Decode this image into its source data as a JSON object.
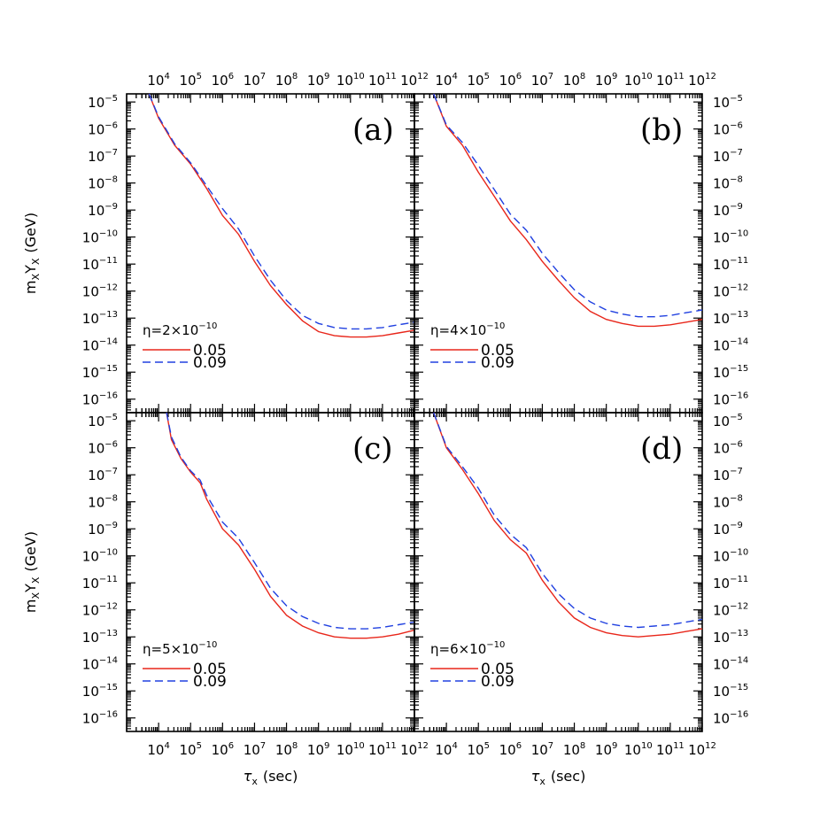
{
  "chart_data": {
    "type": "line",
    "xlabel_symbol": "τ",
    "xlabel_sub": "x",
    "xlabel_unit": "(sec)",
    "ylabel_main": "m",
    "ylabel_sub1": "X",
    "ylabel_mid": "Y",
    "ylabel_sub2": "X",
    "ylabel_unit": "(GeV)",
    "x_scale": "log",
    "y_scale": "log",
    "x_tick_exponents": [
      4,
      5,
      6,
      7,
      8,
      9,
      10,
      11,
      12
    ],
    "y_tick_exponents": [
      -5,
      -6,
      -7,
      -8,
      -9,
      -10,
      -11,
      -12,
      -13,
      -14,
      -15,
      -16
    ],
    "xlim_exp": [
      3.0,
      12.0
    ],
    "ylim_exp": [
      -16.5,
      -4.7
    ],
    "legend": {
      "series": [
        "0.05",
        "0.09"
      ]
    },
    "panels": [
      {
        "tag": "(a)",
        "eta_label": "η=2×10",
        "eta_exp": "−10",
        "series": [
          {
            "name": "0.05",
            "color": "#e8261a",
            "dash": "solid",
            "points": [
              [
                3.7,
                -4.7
              ],
              [
                4.0,
                -5.6
              ],
              [
                4.5,
                -6.6
              ],
              [
                5.0,
                -7.3
              ],
              [
                5.5,
                -8.2
              ],
              [
                6.0,
                -9.2
              ],
              [
                6.5,
                -9.9
              ],
              [
                7.0,
                -10.9
              ],
              [
                7.5,
                -11.8
              ],
              [
                8.0,
                -12.5
              ],
              [
                8.5,
                -13.1
              ],
              [
                9.0,
                -13.5
              ],
              [
                9.5,
                -13.65
              ],
              [
                10.0,
                -13.7
              ],
              [
                10.5,
                -13.7
              ],
              [
                11.0,
                -13.65
              ],
              [
                11.5,
                -13.55
              ],
              [
                12.0,
                -13.45
              ]
            ]
          },
          {
            "name": "0.09",
            "color": "#2040e0",
            "dash": "dashed",
            "points": [
              [
                3.7,
                -4.7
              ],
              [
                4.0,
                -5.55
              ],
              [
                4.5,
                -6.55
              ],
              [
                5.0,
                -7.25
              ],
              [
                5.5,
                -8.1
              ],
              [
                6.0,
                -8.95
              ],
              [
                6.5,
                -9.7
              ],
              [
                7.0,
                -10.7
              ],
              [
                7.5,
                -11.6
              ],
              [
                8.0,
                -12.35
              ],
              [
                8.5,
                -12.9
              ],
              [
                9.0,
                -13.2
              ],
              [
                9.5,
                -13.35
              ],
              [
                10.0,
                -13.4
              ],
              [
                10.5,
                -13.4
              ],
              [
                11.0,
                -13.35
              ],
              [
                11.5,
                -13.25
              ],
              [
                12.0,
                -13.15
              ]
            ]
          }
        ]
      },
      {
        "tag": "(b)",
        "eta_label": "η=4×10",
        "eta_exp": "−10",
        "series": [
          {
            "name": "0.05",
            "color": "#e8261a",
            "dash": "solid",
            "points": [
              [
                3.6,
                -4.7
              ],
              [
                4.0,
                -5.9
              ],
              [
                4.5,
                -6.6
              ],
              [
                5.0,
                -7.6
              ],
              [
                5.5,
                -8.5
              ],
              [
                6.0,
                -9.4
              ],
              [
                6.5,
                -10.1
              ],
              [
                7.0,
                -10.9
              ],
              [
                7.5,
                -11.6
              ],
              [
                8.0,
                -12.25
              ],
              [
                8.5,
                -12.75
              ],
              [
                9.0,
                -13.05
              ],
              [
                9.5,
                -13.2
              ],
              [
                10.0,
                -13.3
              ],
              [
                10.5,
                -13.3
              ],
              [
                11.0,
                -13.25
              ],
              [
                11.5,
                -13.15
              ],
              [
                12.0,
                -13.05
              ]
            ]
          },
          {
            "name": "0.09",
            "color": "#2040e0",
            "dash": "dashed",
            "points": [
              [
                3.6,
                -4.7
              ],
              [
                4.0,
                -5.85
              ],
              [
                4.5,
                -6.5
              ],
              [
                5.0,
                -7.35
              ],
              [
                5.5,
                -8.25
              ],
              [
                6.0,
                -9.15
              ],
              [
                6.5,
                -9.75
              ],
              [
                7.0,
                -10.6
              ],
              [
                7.5,
                -11.3
              ],
              [
                8.0,
                -11.95
              ],
              [
                8.5,
                -12.4
              ],
              [
                9.0,
                -12.7
              ],
              [
                9.5,
                -12.85
              ],
              [
                10.0,
                -12.95
              ],
              [
                10.5,
                -12.95
              ],
              [
                11.0,
                -12.9
              ],
              [
                11.5,
                -12.8
              ],
              [
                12.0,
                -12.7
              ]
            ]
          }
        ]
      },
      {
        "tag": "(c)",
        "eta_label": "η=5×10",
        "eta_exp": "−10",
        "series": [
          {
            "name": "0.05",
            "color": "#e8261a",
            "dash": "solid",
            "points": [
              [
                4.25,
                -4.7
              ],
              [
                4.4,
                -5.7
              ],
              [
                4.7,
                -6.4
              ],
              [
                5.0,
                -6.9
              ],
              [
                5.3,
                -7.3
              ],
              [
                5.5,
                -7.9
              ],
              [
                6.0,
                -9.0
              ],
              [
                6.5,
                -9.6
              ],
              [
                7.0,
                -10.5
              ],
              [
                7.5,
                -11.5
              ],
              [
                8.0,
                -12.2
              ],
              [
                8.5,
                -12.6
              ],
              [
                9.0,
                -12.85
              ],
              [
                9.5,
                -13.0
              ],
              [
                10.0,
                -13.05
              ],
              [
                10.5,
                -13.05
              ],
              [
                11.0,
                -13.0
              ],
              [
                11.5,
                -12.9
              ],
              [
                12.0,
                -12.75
              ]
            ]
          },
          {
            "name": "0.09",
            "color": "#2040e0",
            "dash": "dashed",
            "points": [
              [
                4.25,
                -4.7
              ],
              [
                4.4,
                -5.6
              ],
              [
                4.7,
                -6.35
              ],
              [
                5.0,
                -6.85
              ],
              [
                5.3,
                -7.2
              ],
              [
                5.5,
                -7.75
              ],
              [
                6.0,
                -8.75
              ],
              [
                6.5,
                -9.35
              ],
              [
                7.0,
                -10.25
              ],
              [
                7.5,
                -11.2
              ],
              [
                8.0,
                -11.85
              ],
              [
                8.5,
                -12.25
              ],
              [
                9.0,
                -12.5
              ],
              [
                9.5,
                -12.65
              ],
              [
                10.0,
                -12.7
              ],
              [
                10.5,
                -12.7
              ],
              [
                11.0,
                -12.65
              ],
              [
                11.5,
                -12.55
              ],
              [
                12.0,
                -12.45
              ]
            ]
          }
        ]
      },
      {
        "tag": "(d)",
        "eta_label": "η=6×10",
        "eta_exp": "−10",
        "series": [
          {
            "name": "0.05",
            "color": "#e8261a",
            "dash": "solid",
            "points": [
              [
                3.6,
                -4.7
              ],
              [
                4.0,
                -6.0
              ],
              [
                4.5,
                -6.8
              ],
              [
                5.0,
                -7.7
              ],
              [
                5.5,
                -8.7
              ],
              [
                6.0,
                -9.4
              ],
              [
                6.5,
                -9.9
              ],
              [
                7.0,
                -10.9
              ],
              [
                7.5,
                -11.7
              ],
              [
                8.0,
                -12.3
              ],
              [
                8.5,
                -12.65
              ],
              [
                9.0,
                -12.85
              ],
              [
                9.5,
                -12.95
              ],
              [
                10.0,
                -13.0
              ],
              [
                10.5,
                -12.95
              ],
              [
                11.0,
                -12.9
              ],
              [
                11.5,
                -12.8
              ],
              [
                12.0,
                -12.7
              ]
            ]
          },
          {
            "name": "0.09",
            "color": "#2040e0",
            "dash": "dashed",
            "points": [
              [
                3.6,
                -4.7
              ],
              [
                4.0,
                -5.95
              ],
              [
                4.5,
                -6.7
              ],
              [
                5.0,
                -7.5
              ],
              [
                5.5,
                -8.5
              ],
              [
                6.0,
                -9.2
              ],
              [
                6.5,
                -9.7
              ],
              [
                7.0,
                -10.65
              ],
              [
                7.5,
                -11.4
              ],
              [
                8.0,
                -11.95
              ],
              [
                8.5,
                -12.3
              ],
              [
                9.0,
                -12.5
              ],
              [
                9.5,
                -12.6
              ],
              [
                10.0,
                -12.65
              ],
              [
                10.5,
                -12.6
              ],
              [
                11.0,
                -12.55
              ],
              [
                11.5,
                -12.45
              ],
              [
                12.0,
                -12.35
              ]
            ]
          }
        ]
      }
    ]
  }
}
